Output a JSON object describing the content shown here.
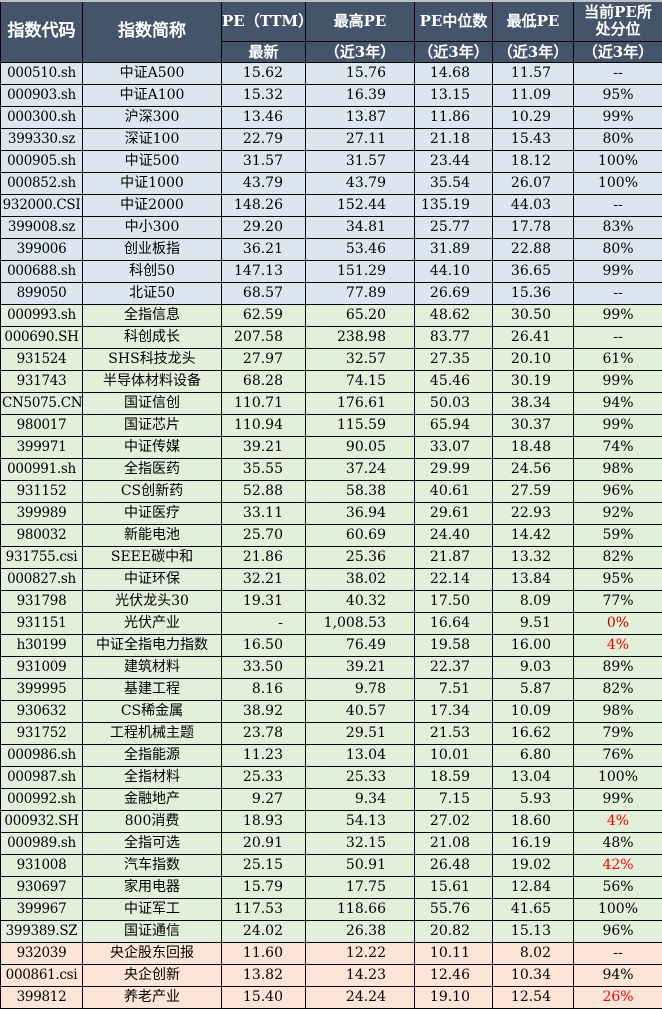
{
  "header": {
    "code": "指数代码",
    "name": "指数简称",
    "pe": "PE（TTM）",
    "pe_sub": "最新",
    "high": "最高PE",
    "high_sub": "（近3年）",
    "median": "PE中位数",
    "median_sub": "（近3年）",
    "low": "最低PE",
    "low_sub": "（近3年）",
    "pct": "当前PE所处分位",
    "pct_sub": "（近3年）"
  },
  "colors": {
    "header": "#44546a",
    "blue": "#dce6f1",
    "green": "#e2efda",
    "pink": "#fce4d6",
    "red": "#ff0000",
    "dark_red": "#c00000"
  },
  "rows": [
    {
      "code": "000510.sh",
      "name": "中证A500",
      "pe": "15.62",
      "high": "15.76",
      "median": "14.68",
      "low": "11.57",
      "pct": "--",
      "group": "blue"
    },
    {
      "code": "000903.sh",
      "name": "中证A100",
      "pe": "15.32",
      "high": "16.39",
      "median": "13.15",
      "low": "11.09",
      "pct": "95%",
      "group": "blue"
    },
    {
      "code": "000300.sh",
      "name": "沪深300",
      "pe": "13.46",
      "high": "13.87",
      "median": "11.86",
      "low": "10.29",
      "pct": "99%",
      "group": "blue"
    },
    {
      "code": "399330.sz",
      "name": "深证100",
      "pe": "22.79",
      "high": "27.11",
      "median": "21.18",
      "low": "15.43",
      "pct": "80%",
      "group": "blue"
    },
    {
      "code": "000905.sh",
      "name": "中证500",
      "pe": "31.57",
      "high": "31.57",
      "median": "23.44",
      "low": "18.12",
      "pct": "100%",
      "group": "blue"
    },
    {
      "code": "000852.sh",
      "name": "中证1000",
      "pe": "43.79",
      "high": "43.79",
      "median": "35.54",
      "low": "26.07",
      "pct": "100%",
      "group": "blue"
    },
    {
      "code": "932000.CSI",
      "name": "中证2000",
      "pe": "148.26",
      "high": "152.44",
      "median": "135.19",
      "low": "44.03",
      "pct": "--",
      "group": "blue"
    },
    {
      "code": "399008.sz",
      "name": "中小300",
      "pe": "29.20",
      "high": "34.81",
      "median": "25.77",
      "low": "17.78",
      "pct": "83%",
      "group": "blue"
    },
    {
      "code": "399006",
      "name": "创业板指",
      "pe": "36.21",
      "high": "53.46",
      "median": "31.89",
      "low": "22.88",
      "pct": "80%",
      "group": "blue"
    },
    {
      "code": "000688.sh",
      "name": "科创50",
      "pe": "147.13",
      "high": "151.29",
      "median": "44.10",
      "low": "36.65",
      "pct": "99%",
      "group": "blue"
    },
    {
      "code": "899050",
      "name": "北证50",
      "pe": "68.57",
      "high": "77.89",
      "median": "26.69",
      "low": "15.36",
      "pct": "--",
      "group": "blue"
    },
    {
      "code": "000993.sh",
      "name": "全指信息",
      "pe": "62.59",
      "high": "65.20",
      "median": "48.62",
      "low": "30.50",
      "pct": "99%",
      "group": "green"
    },
    {
      "code": "000690.SH",
      "name": "科创成长",
      "pe": "207.58",
      "high": "238.98",
      "median": "83.77",
      "low": "26.41",
      "pct": "--",
      "group": "green"
    },
    {
      "code": "931524",
      "name": "SHS科技龙头",
      "pe": "27.97",
      "high": "32.57",
      "median": "27.35",
      "low": "20.10",
      "pct": "61%",
      "group": "green"
    },
    {
      "code": "931743",
      "name": "半导体材料设备",
      "pe": "68.28",
      "high": "74.15",
      "median": "45.46",
      "low": "30.19",
      "pct": "99%",
      "group": "green"
    },
    {
      "code": "CN5075.CN",
      "name": "国证信创",
      "pe": "110.71",
      "high": "176.61",
      "median": "50.03",
      "low": "38.34",
      "pct": "94%",
      "group": "green"
    },
    {
      "code": "980017",
      "name": "国证芯片",
      "pe": "110.94",
      "high": "115.59",
      "median": "65.94",
      "low": "30.37",
      "pct": "99%",
      "group": "green"
    },
    {
      "code": "399971",
      "name": "中证传媒",
      "pe": "39.21",
      "high": "90.05",
      "median": "33.07",
      "low": "18.48",
      "pct": "74%",
      "group": "green"
    },
    {
      "code": "000991.sh",
      "name": "全指医药",
      "pe": "35.55",
      "high": "37.24",
      "median": "29.99",
      "low": "24.56",
      "pct": "98%",
      "group": "green"
    },
    {
      "code": "931152",
      "name": "CS创新药",
      "pe": "52.88",
      "high": "58.38",
      "median": "40.61",
      "low": "27.59",
      "pct": "96%",
      "group": "green"
    },
    {
      "code": "399989",
      "name": "中证医疗",
      "pe": "33.11",
      "high": "36.94",
      "median": "29.61",
      "low": "22.93",
      "pct": "92%",
      "group": "green"
    },
    {
      "code": "980032",
      "name": "新能电池",
      "pe": "25.70",
      "high": "60.69",
      "median": "24.40",
      "low": "14.42",
      "pct": "59%",
      "group": "green"
    },
    {
      "code": "931755.csi",
      "name": "SEEE碳中和",
      "pe": "21.86",
      "high": "25.36",
      "median": "21.87",
      "low": "13.32",
      "pct": "82%",
      "group": "green"
    },
    {
      "code": "000827.sh",
      "name": "中证环保",
      "pe": "32.21",
      "high": "38.02",
      "median": "22.14",
      "low": "13.84",
      "pct": "95%",
      "group": "green"
    },
    {
      "code": "931798",
      "name": "光伏龙头30",
      "pe": "19.31",
      "high": "40.32",
      "median": "17.50",
      "low": "8.09",
      "pct": "77%",
      "group": "green"
    },
    {
      "code": "931151",
      "name": "光伏产业",
      "pe": "-",
      "high": "1,008.53",
      "median": "16.64",
      "low": "9.51",
      "pct": "0%",
      "group": "green",
      "pct_color": "dark_red"
    },
    {
      "code": "h30199",
      "name": "中证全指电力指数",
      "pe": "16.50",
      "high": "76.49",
      "median": "19.58",
      "low": "16.00",
      "pct": "4%",
      "group": "green",
      "pct_color": "red"
    },
    {
      "code": "931009",
      "name": "建筑材料",
      "pe": "33.50",
      "high": "39.21",
      "median": "22.37",
      "low": "9.03",
      "pct": "89%",
      "group": "green"
    },
    {
      "code": "399995",
      "name": "基建工程",
      "pe": "8.16",
      "high": "9.78",
      "median": "7.51",
      "low": "5.87",
      "pct": "82%",
      "group": "green"
    },
    {
      "code": "930632",
      "name": "CS稀金属",
      "pe": "38.92",
      "high": "40.57",
      "median": "17.34",
      "low": "10.09",
      "pct": "98%",
      "group": "green"
    },
    {
      "code": "931752",
      "name": "工程机械主题",
      "pe": "23.78",
      "high": "29.51",
      "median": "21.53",
      "low": "16.62",
      "pct": "79%",
      "group": "green"
    },
    {
      "code": "000986.sh",
      "name": "全指能源",
      "pe": "11.23",
      "high": "13.04",
      "median": "10.01",
      "low": "6.80",
      "pct": "76%",
      "group": "green"
    },
    {
      "code": "000987.sh",
      "name": "全指材料",
      "pe": "25.33",
      "high": "25.33",
      "median": "18.59",
      "low": "13.04",
      "pct": "100%",
      "group": "green"
    },
    {
      "code": "000992.sh",
      "name": "金融地产",
      "pe": "9.27",
      "high": "9.34",
      "median": "7.15",
      "low": "5.93",
      "pct": "99%",
      "group": "green"
    },
    {
      "code": "000932.SH",
      "name": "800消费",
      "pe": "18.93",
      "high": "54.13",
      "median": "27.02",
      "low": "18.60",
      "pct": "4%",
      "group": "green",
      "pct_color": "red"
    },
    {
      "code": "000989.sh",
      "name": "全指可选",
      "pe": "20.91",
      "high": "32.15",
      "median": "21.08",
      "low": "16.19",
      "pct": "48%",
      "group": "green"
    },
    {
      "code": "931008",
      "name": "汽车指数",
      "pe": "25.15",
      "high": "50.91",
      "median": "26.48",
      "low": "19.02",
      "pct": "42%",
      "group": "green",
      "pct_color": "red"
    },
    {
      "code": "930697",
      "name": "家用电器",
      "pe": "15.79",
      "high": "17.75",
      "median": "15.61",
      "low": "12.84",
      "pct": "56%",
      "group": "green"
    },
    {
      "code": "399967",
      "name": "中证军工",
      "pe": "117.53",
      "high": "118.66",
      "median": "55.76",
      "low": "41.65",
      "pct": "100%",
      "group": "green"
    },
    {
      "code": "399389.SZ",
      "name": "国证通信",
      "pe": "24.02",
      "high": "26.38",
      "median": "20.82",
      "low": "15.13",
      "pct": "96%",
      "group": "green"
    },
    {
      "code": "932039",
      "name": "央企股东回报",
      "pe": "11.60",
      "high": "12.22",
      "median": "10.11",
      "low": "8.02",
      "pct": "--",
      "group": "pink"
    },
    {
      "code": "000861.csi",
      "name": "央企创新",
      "pe": "13.82",
      "high": "14.23",
      "median": "12.46",
      "low": "10.34",
      "pct": "94%",
      "group": "pink"
    },
    {
      "code": "399812",
      "name": "养老产业",
      "pe": "15.40",
      "high": "24.24",
      "median": "19.10",
      "low": "12.54",
      "pct": "26%",
      "group": "pink",
      "pct_color": "red"
    }
  ]
}
